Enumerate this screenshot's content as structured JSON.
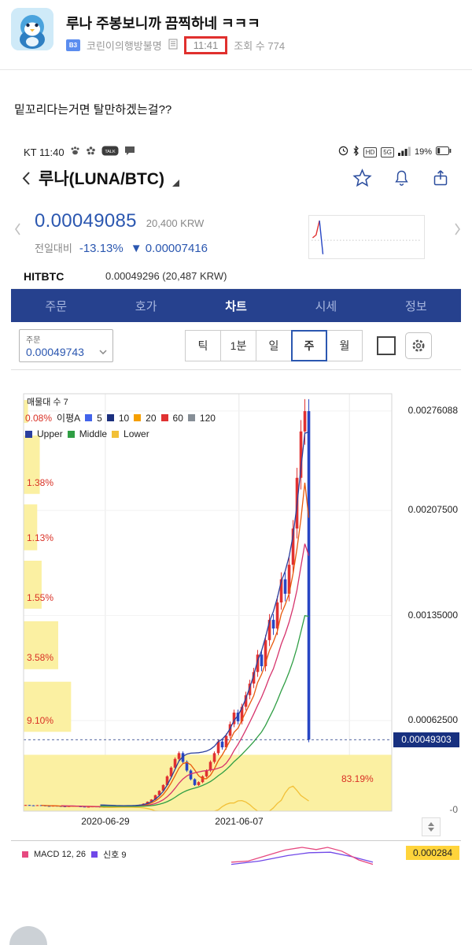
{
  "post": {
    "title": "루나 주봉보니까 끔찍하네 ㅋㅋㅋ",
    "badge": "B3",
    "author": "코린이의행방불명",
    "time": "11:41",
    "views": "조회 수 774",
    "body": "밑꼬리다는거면 탈만하겠는걸??"
  },
  "status_bar": {
    "carrier_time": "KT 11:40",
    "talk": "TALK",
    "hd": "HD",
    "network": "5G",
    "battery": "19%"
  },
  "app": {
    "nav_title": "루나(LUNA/BTC)",
    "price": "0.00049085",
    "price_krw": "20,400 KRW",
    "change_label": "전일대비",
    "change_pct": "-13.13%",
    "change_abs": "▼ 0.00007416",
    "exchange_name": "HITBTC",
    "exchange_value": "0.00049296 (20,487 KRW)",
    "tabs": [
      "주문",
      "호가",
      "차트",
      "시세",
      "정보"
    ],
    "active_tab": "차트",
    "order_label": "주문",
    "order_value": "0.00049743",
    "intervals": [
      "틱",
      "1분",
      "일",
      "주",
      "월"
    ],
    "active_interval": "주"
  },
  "chart_data": {
    "type": "candlestick",
    "unit": 1e-05,
    "closes_e5": [
      4.2,
      4.0,
      3.8,
      4.1,
      3.9,
      3.6,
      3.4,
      3.7,
      3.5,
      3.3,
      3.2,
      3.4,
      3.6,
      3.3,
      3.1,
      2.9,
      3.0,
      3.2,
      3.1,
      2.8,
      2.6,
      2.9,
      3.1,
      3.3,
      3.5,
      3.4,
      3.6,
      3.8,
      4.0,
      4.4,
      5.2,
      6.5,
      8.0,
      11,
      14,
      18,
      24,
      30,
      36,
      40,
      34,
      28,
      22,
      18,
      20,
      24,
      28,
      34,
      40,
      48,
      44,
      52,
      60,
      68,
      62,
      72,
      80,
      88,
      96,
      108,
      100,
      118,
      132,
      126,
      144,
      160,
      150,
      170,
      195,
      230,
      262,
      276,
      49.3
    ],
    "x_span": 0.78,
    "up_color": "#e03131",
    "down_color": "#2746c4",
    "vp_color": "#fbf0a2",
    "tag_color": "#17307f",
    "line_colors": {
      "ma5": "#e8590c",
      "ma10": "#d6336c",
      "upper": "#2b3f9e",
      "middle": "#2f9e44",
      "lower": "#f2c037"
    },
    "grid_x": [
      0.222,
      0.585,
      0.885
    ],
    "y_axis": {
      "max": 0.00288,
      "labels": [
        "0.00276088",
        "0.00207500",
        "0.00135000",
        "0.00062500"
      ],
      "label_values": [
        0.00276088,
        0.002075,
        0.00135,
        0.000625
      ],
      "zero_label": "-0"
    },
    "x_labels": [
      "2020-06-29",
      "2021-06-07"
    ],
    "current_price": {
      "text": "0.00049303",
      "value": 0.00049303
    },
    "overlays": {
      "vp_title": "매물대 수 7",
      "ma_title": "이평A",
      "ma_legend": [
        {
          "label": "5",
          "color": "#4263eb"
        },
        {
          "label": "10",
          "color": "#1b2f7e"
        },
        {
          "label": "20",
          "color": "#f59f00"
        },
        {
          "label": "60",
          "color": "#e03131"
        },
        {
          "label": "120",
          "color": "#868e96"
        }
      ],
      "band_legend": [
        {
          "label": "Upper",
          "color": "#2b3f9e"
        },
        {
          "label": "Middle",
          "color": "#2f9e44"
        },
        {
          "label": "Lower",
          "color": "#f2c037"
        }
      ]
    },
    "volume_profile": [
      {
        "pct": "0.08%",
        "top": 0.015,
        "h": 0.055,
        "w": 0.013
      },
      {
        "pct": "1.38%",
        "top": 0.1,
        "h": 0.14,
        "w": 0.045
      },
      {
        "pct": "1.13%",
        "top": 0.265,
        "h": 0.11,
        "w": 0.038
      },
      {
        "pct": "1.55%",
        "top": 0.4,
        "h": 0.115,
        "w": 0.05
      },
      {
        "pct": "3.58%",
        "top": 0.545,
        "h": 0.115,
        "w": 0.095
      },
      {
        "pct": "9.10%",
        "top": 0.69,
        "h": 0.12,
        "w": 0.13
      },
      {
        "pct": "83.19%",
        "top": 0.865,
        "h": 0.135,
        "w": 1.0
      }
    ],
    "macd": {
      "label": "MACD 12, 26",
      "signal_label": "신호 9",
      "value": "0.000284",
      "macd_color": "#e64980",
      "signal_color": "#7048e8",
      "curve": [
        [
          0,
          0.85
        ],
        [
          0.12,
          0.8
        ],
        [
          0.25,
          0.55
        ],
        [
          0.38,
          0.3
        ],
        [
          0.5,
          0.18
        ],
        [
          0.6,
          0.28
        ],
        [
          0.68,
          0.18
        ],
        [
          0.78,
          0.35
        ],
        [
          0.9,
          0.75
        ],
        [
          1,
          0.95
        ]
      ],
      "signal_curve": [
        [
          0,
          0.95
        ],
        [
          0.2,
          0.8
        ],
        [
          0.4,
          0.55
        ],
        [
          0.55,
          0.42
        ],
        [
          0.7,
          0.4
        ],
        [
          0.85,
          0.6
        ],
        [
          1,
          0.85
        ]
      ]
    },
    "sparkline": {
      "baseline_y": 0.58,
      "red": [
        [
          0.03,
          0.52
        ],
        [
          0.06,
          0.45
        ],
        [
          0.09,
          0.1
        ]
      ],
      "blue": [
        [
          0.09,
          0.1
        ],
        [
          0.12,
          0.92
        ]
      ]
    }
  }
}
